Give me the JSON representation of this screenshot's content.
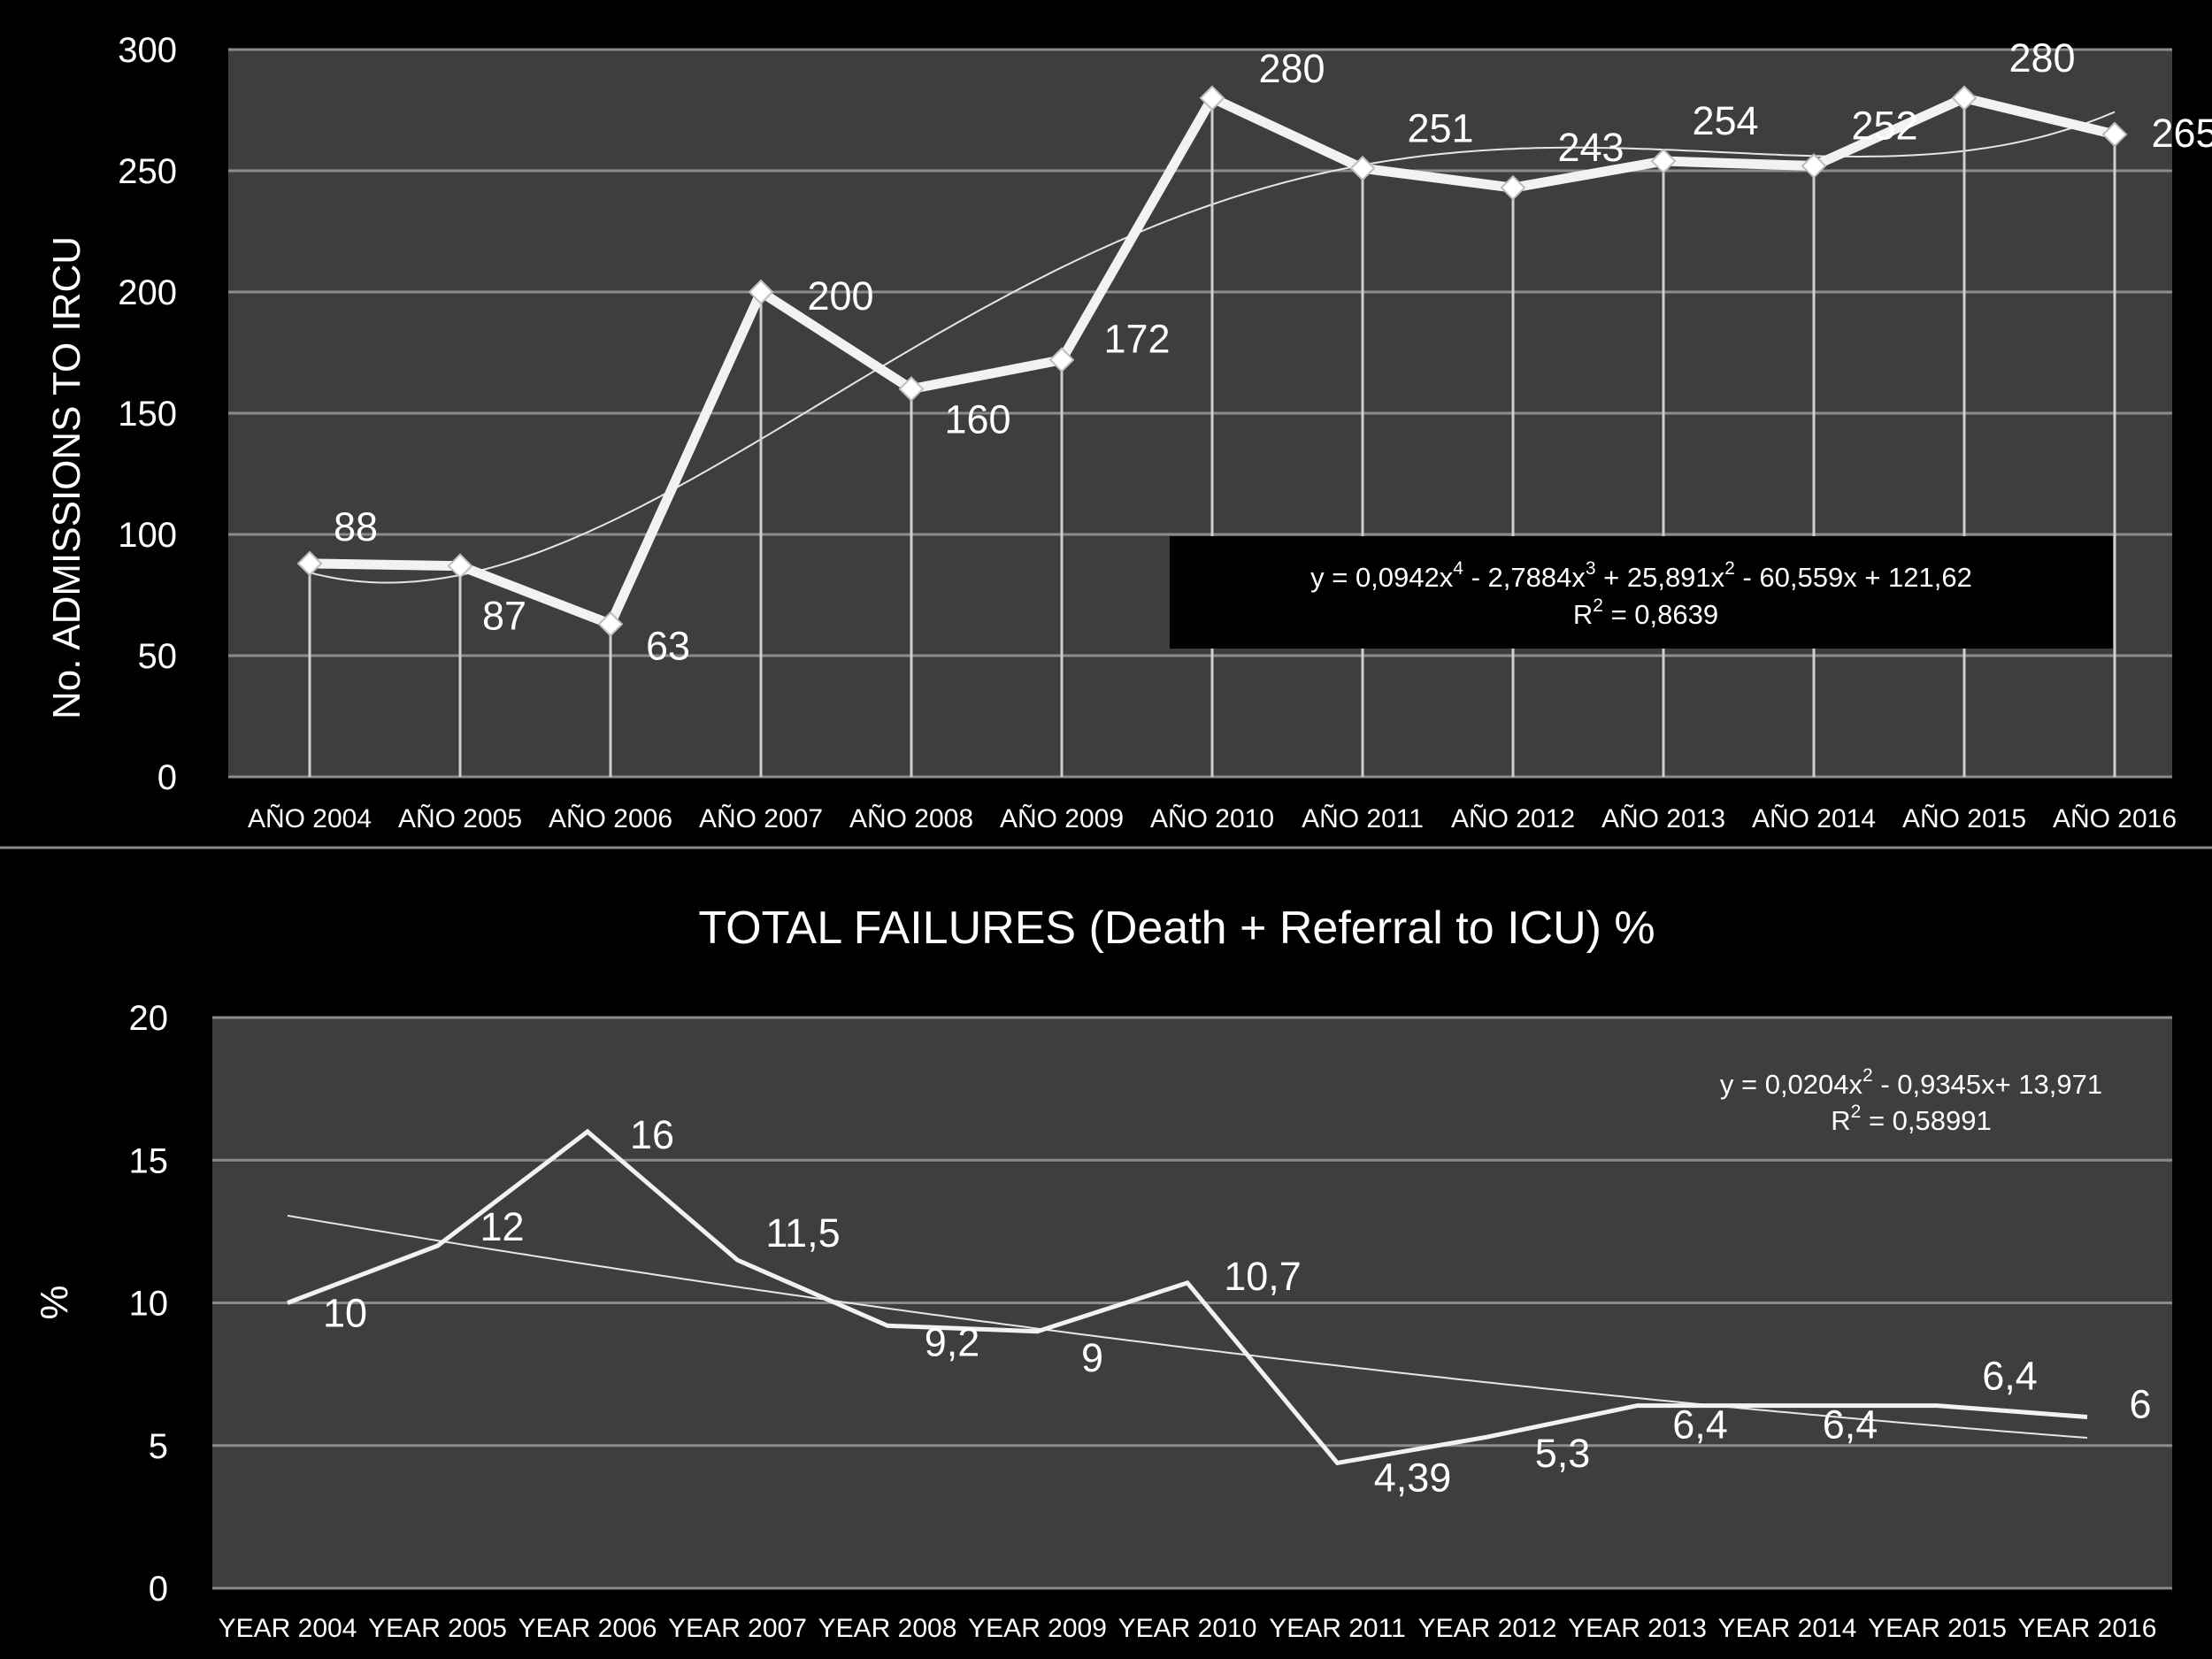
{
  "chart_data": [
    {
      "type": "line",
      "title": "",
      "xlabel": "",
      "ylabel": "No. ADMISSIONS TO IRCU",
      "ylim": [
        0,
        300
      ],
      "yticks": [
        0,
        50,
        100,
        150,
        200,
        250,
        300
      ],
      "grid": true,
      "categories": [
        "AÑO 2004",
        "AÑO 2005",
        "AÑO 2006",
        "AÑO 2007",
        "AÑO 2008",
        "AÑO 2009",
        "AÑO 2010",
        "AÑO 2011",
        "AÑO 2012",
        "AÑO 2013",
        "AÑO 2014",
        "AÑO 2015",
        "AÑO 2016"
      ],
      "series": [
        {
          "values": [
            88,
            87,
            63,
            200,
            160,
            172,
            280,
            251,
            243,
            254,
            252,
            280,
            265
          ],
          "labels": [
            "88",
            "87",
            "63",
            "200",
            "160",
            "172",
            "280",
            "251",
            "243",
            "254",
            "252",
            "280",
            "265"
          ],
          "marker": "diamond"
        }
      ],
      "trendline": {
        "type": "polynomial",
        "order": 4,
        "coefficients": [
          121.62,
          -60.559,
          25.891,
          -2.7884,
          0.0942
        ],
        "equation_text": {
          "lead": "y = 0,0942x",
          "e1": "4",
          "t1": " - 2,7884x",
          "e2": "3",
          "t2": " + 25,891x",
          "e3": "2",
          "t3": " - 60,559x + 121,62"
        },
        "r2_text": {
          "lead": "R",
          "e": "2",
          "tail": " = 0,8639"
        }
      }
    },
    {
      "type": "line",
      "title": "TOTAL FAILURES (Death + Referral to ICU) %",
      "xlabel": "",
      "ylabel": "%",
      "ylim": [
        0,
        20
      ],
      "yticks": [
        0,
        5,
        10,
        15,
        20
      ],
      "grid": true,
      "categories": [
        "YEAR 2004",
        "YEAR 2005",
        "YEAR 2006",
        "YEAR 2007",
        "YEAR 2008",
        "YEAR 2009",
        "YEAR 2010",
        "YEAR 2011",
        "YEAR 2012",
        "YEAR 2013",
        "YEAR 2014",
        "YEAR 2015",
        "YEAR 2016"
      ],
      "series": [
        {
          "values": [
            10,
            12,
            16,
            11.5,
            9.2,
            9,
            10.7,
            4.39,
            5.3,
            6.4,
            6.4,
            6.4,
            6
          ],
          "labels": [
            "10",
            "12",
            "16",
            "11,5",
            "9,2",
            "9",
            "10,7",
            "4,39",
            "5,3",
            "6,4",
            "6,4",
            "6,4",
            "6"
          ]
        }
      ],
      "trendline": {
        "type": "polynomial",
        "order": 2,
        "coefficients": [
          13.971,
          -0.9345,
          0.0204
        ],
        "equation_text": {
          "lead": "y = 0,0204x",
          "e1": "2",
          "t1": " - 0,9345x+ 13,971"
        },
        "r2_text": {
          "lead": "R",
          "e": "2",
          "tail": " = 0,58991"
        }
      }
    }
  ]
}
